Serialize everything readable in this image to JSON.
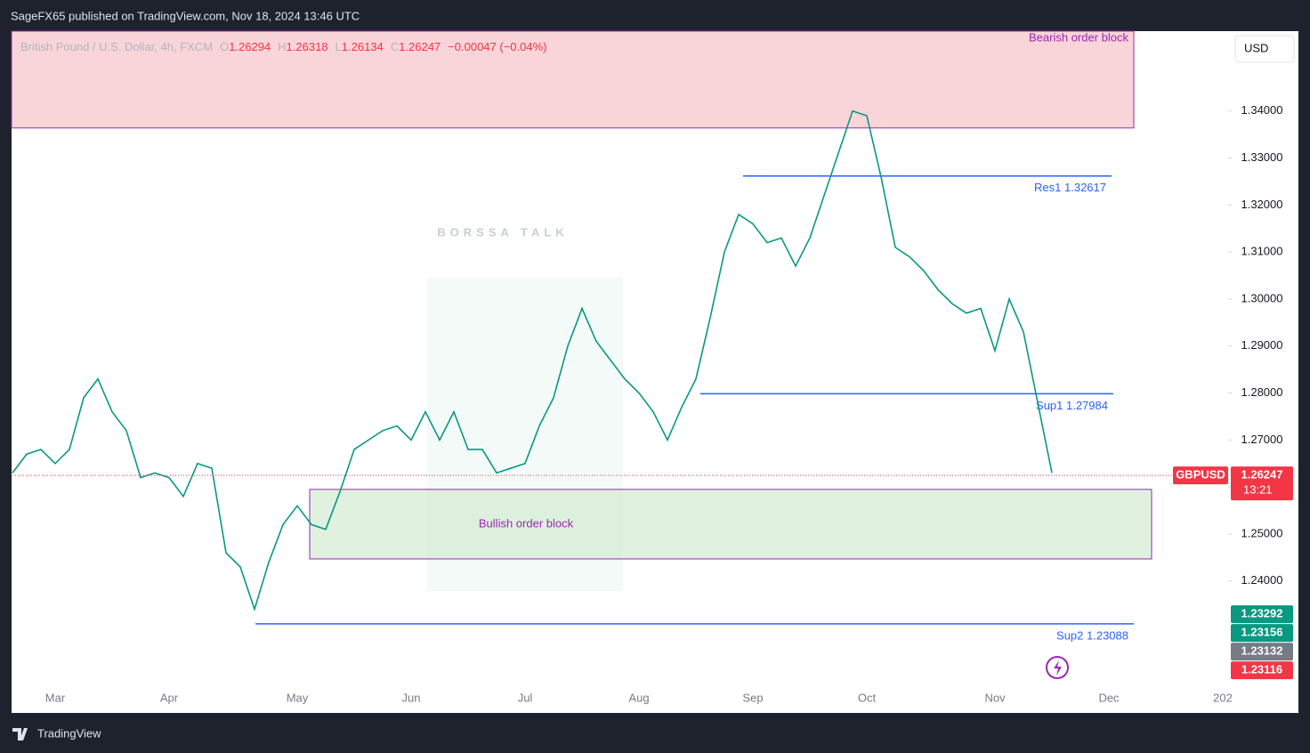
{
  "header": {
    "published": "SageFX65 published on TradingView.com, Nov 18, 2024 13:46 UTC",
    "brand": "TradingView",
    "currency_button": "USD",
    "watermark": "BORSSA TALK"
  },
  "legend": {
    "symbol": "British Pound / U.S. Dollar, 4h, FXCM",
    "fields": [
      {
        "key": "O",
        "value": 1.26294
      },
      {
        "key": "H",
        "value": 1.26318
      },
      {
        "key": "L",
        "value": 1.26134
      },
      {
        "key": "C",
        "value": 1.26247
      }
    ],
    "change": "−0.00047 (−0.04%)"
  },
  "chart_data": {
    "type": "line",
    "color": "#089981",
    "categories": [
      null,
      null,
      null,
      "Mar",
      null,
      null,
      null,
      null,
      null,
      null,
      null,
      "Apr",
      null,
      null,
      null,
      null,
      null,
      null,
      null,
      null,
      "May",
      null,
      null,
      null,
      null,
      null,
      null,
      null,
      "Jun",
      null,
      null,
      null,
      null,
      null,
      null,
      null,
      "Jul",
      null,
      null,
      null,
      null,
      null,
      null,
      null,
      "Aug",
      null,
      null,
      null,
      null,
      null,
      null,
      null,
      "Sep",
      null,
      null,
      null,
      null,
      null,
      null,
      null,
      "Oct",
      null,
      null,
      null,
      null,
      null,
      null,
      null,
      null,
      "Nov",
      null,
      null,
      null,
      null,
      null,
      null,
      null,
      "Dec",
      null,
      null,
      null,
      null,
      null,
      null,
      null,
      "202"
    ],
    "values": [
      1.263,
      1.267,
      1.268,
      1.265,
      1.268,
      1.279,
      1.283,
      1.276,
      1.272,
      1.262,
      1.263,
      1.262,
      1.258,
      1.265,
      1.264,
      1.246,
      1.243,
      1.234,
      1.244,
      1.252,
      1.256,
      1.252,
      1.251,
      1.259,
      1.268,
      1.27,
      1.272,
      1.273,
      1.27,
      1.276,
      1.27,
      1.276,
      1.268,
      1.268,
      1.263,
      1.264,
      1.265,
      1.273,
      1.279,
      1.29,
      1.298,
      1.291,
      1.287,
      1.283,
      1.28,
      1.276,
      1.27,
      1.277,
      1.283,
      1.296,
      1.31,
      1.318,
      1.316,
      1.312,
      1.313,
      1.307,
      1.313,
      1.322,
      1.331,
      1.34,
      1.339,
      1.326,
      1.311,
      1.309,
      1.306,
      1.302,
      1.299,
      1.297,
      1.298,
      1.289,
      1.3,
      1.293,
      1.278,
      1.263,
      null,
      null,
      null,
      null,
      null,
      null,
      null,
      null,
      null,
      null,
      null,
      null
    ],
    "ylim": [
      1.2178,
      1.357
    ],
    "yticks": [
      {
        "value": 1.24,
        "label": "1.24000"
      },
      {
        "value": 1.25,
        "label": "1.25000"
      },
      {
        "value": 1.26,
        "label": "1.26000"
      },
      {
        "value": 1.27,
        "label": "1.27000"
      },
      {
        "value": 1.28,
        "label": "1.28000"
      },
      {
        "value": 1.29,
        "label": "1.29000"
      },
      {
        "value": 1.3,
        "label": "1.30000"
      },
      {
        "value": 1.31,
        "label": "1.31000"
      },
      {
        "value": 1.32,
        "label": "1.32000"
      },
      {
        "value": 1.33,
        "label": "1.33000"
      },
      {
        "value": 1.34,
        "label": "1.34000"
      }
    ],
    "zones": [
      {
        "label": "Bearish order block",
        "range": [
          1.3364,
          1.357
        ],
        "color": "#f7c6cc"
      },
      {
        "label": "Bullish order block",
        "range": [
          1.2447,
          1.2595
        ],
        "color": "#d5ecd6"
      }
    ],
    "levels": [
      {
        "label": "Res1 1.32617",
        "value": 1.32617
      },
      {
        "label": "Sup1 1.27984",
        "value": 1.27984
      },
      {
        "label": "Sup2 1.23088",
        "value": 1.23088
      }
    ],
    "last_price": {
      "symbol": "GBPUSD",
      "value": 1.26247,
      "countdown": "13:21"
    },
    "price_tags": [
      {
        "value": 1.23292,
        "color": "#089981"
      },
      {
        "value": 1.23156,
        "color": "#089981"
      },
      {
        "value": 1.23132,
        "color": "#787b86"
      },
      {
        "value": 1.23116,
        "color": "#f23645"
      }
    ]
  }
}
